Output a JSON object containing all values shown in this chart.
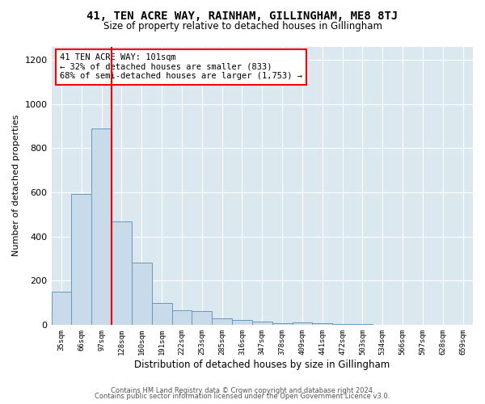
{
  "title": "41, TEN ACRE WAY, RAINHAM, GILLINGHAM, ME8 8TJ",
  "subtitle": "Size of property relative to detached houses in Gillingham",
  "xlabel": "Distribution of detached houses by size in Gillingham",
  "ylabel": "Number of detached properties",
  "bar_color": "#c9daea",
  "bar_edge_color": "#6699bb",
  "background_color": "#ffffff",
  "plot_bg_color": "#dce8f0",
  "categories": [
    "35sqm",
    "66sqm",
    "97sqm",
    "128sqm",
    "160sqm",
    "191sqm",
    "222sqm",
    "253sqm",
    "285sqm",
    "316sqm",
    "347sqm",
    "378sqm",
    "409sqm",
    "441sqm",
    "472sqm",
    "503sqm",
    "534sqm",
    "566sqm",
    "597sqm",
    "628sqm",
    "659sqm"
  ],
  "values": [
    148,
    592,
    890,
    468,
    280,
    100,
    65,
    62,
    28,
    20,
    15,
    8,
    10,
    5,
    3,
    2,
    1,
    1,
    1,
    1,
    1
  ],
  "ylim": [
    0,
    1260
  ],
  "yticks": [
    0,
    200,
    400,
    600,
    800,
    1000,
    1200
  ],
  "annotation_line1": "41 TEN ACRE WAY: 101sqm",
  "annotation_line2": "← 32% of detached houses are smaller (833)",
  "annotation_line3": "68% of semi-detached houses are larger (1,753) →",
  "vline_bin_index": 2,
  "footer_line1": "Contains HM Land Registry data © Crown copyright and database right 2024.",
  "footer_line2": "Contains public sector information licensed under the Open Government Licence v3.0."
}
